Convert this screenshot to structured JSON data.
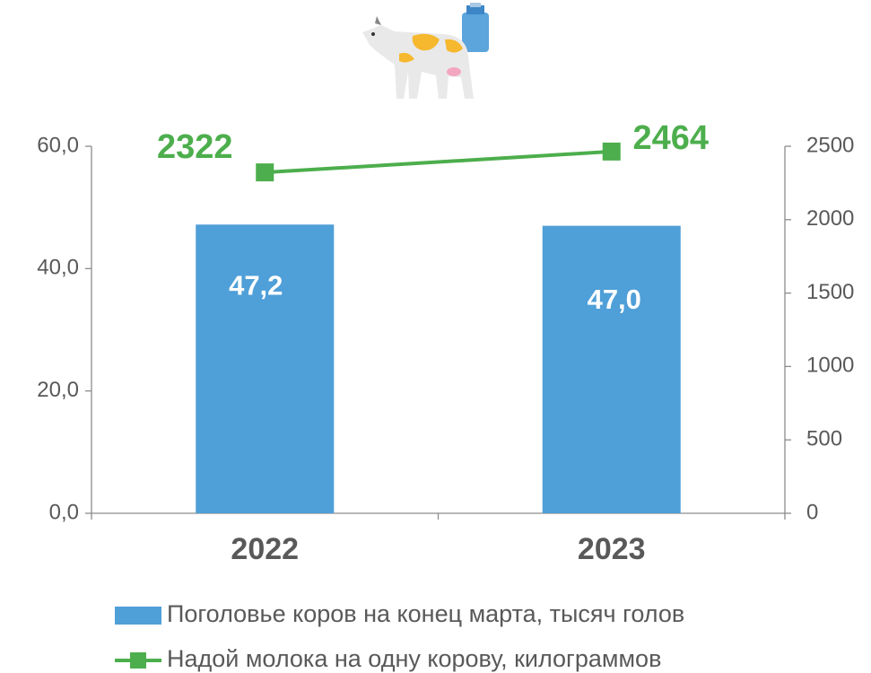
{
  "chart_data": {
    "type": "combo",
    "categories": [
      "2022",
      "2023"
    ],
    "series": [
      {
        "name": "Поголовье коров на конец марта, тысяч голов",
        "type": "bar",
        "color": "#4f9fd8",
        "values": [
          47.2,
          47.0
        ],
        "value_labels": [
          "47,2",
          "47,0"
        ]
      },
      {
        "name": "Надой молока на одну корову, килограммов",
        "type": "line",
        "axis": "y2",
        "color": "#4cae4c",
        "values": [
          2322,
          2464
        ]
      }
    ],
    "ylim": [
      0,
      60
    ],
    "yticks": [
      {
        "value": 0,
        "label": "0,0"
      },
      {
        "value": 20,
        "label": "20,0"
      },
      {
        "value": 40,
        "label": "40,0"
      },
      {
        "value": 60,
        "label": "60,0"
      }
    ],
    "y2lim": [
      0,
      2500
    ],
    "y2ticks": [
      0,
      500,
      1000,
      1500,
      2000,
      2500
    ],
    "grid": false,
    "legend": "bottom"
  }
}
